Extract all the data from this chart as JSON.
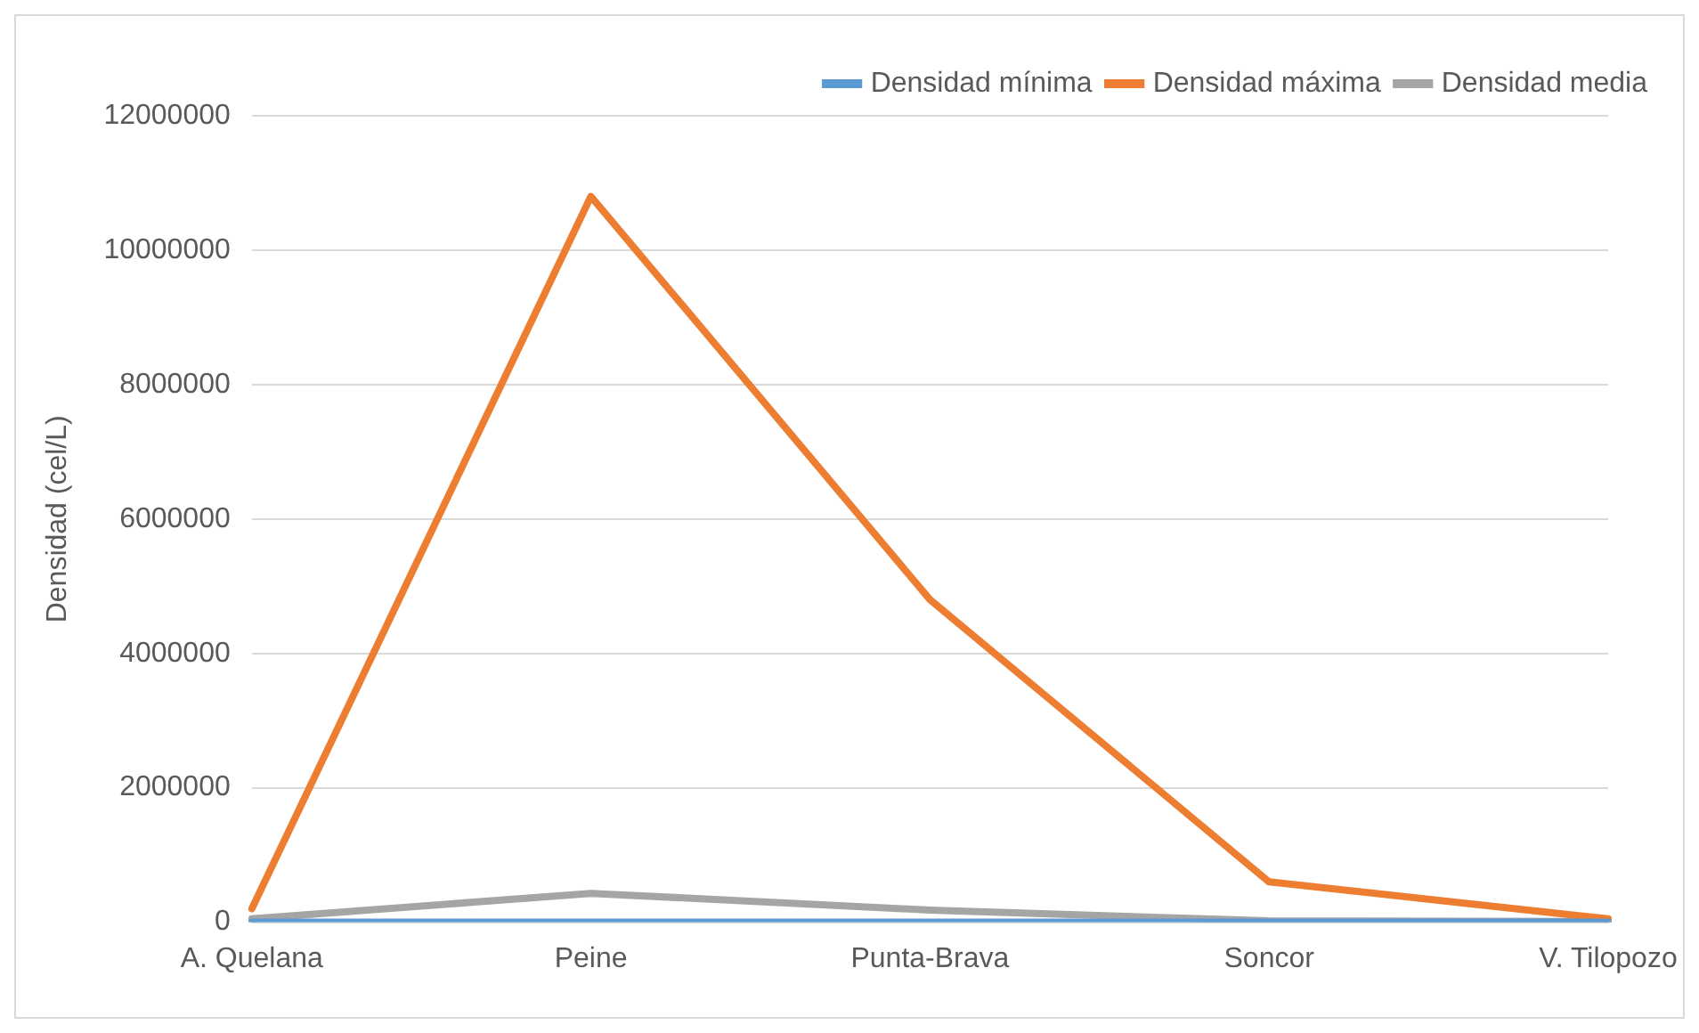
{
  "chart_data": {
    "type": "line",
    "ylabel": "Densidad (cel/L)",
    "categories": [
      "A. Quelana",
      "Peine",
      "Punta-Brava",
      "Soncor",
      "V. Tilopozo"
    ],
    "series": [
      {
        "name": "Densidad mínima",
        "color": "#5b9bd5",
        "values": [
          0,
          0,
          0,
          0,
          0
        ]
      },
      {
        "name": "Densidad máxima",
        "color": "#ed7d31",
        "values": [
          200000,
          10800000,
          4800000,
          600000,
          50000
        ]
      },
      {
        "name": "Densidad media",
        "color": "#a5a5a5",
        "values": [
          50000,
          430000,
          180000,
          20000,
          10000
        ]
      }
    ],
    "ylim": [
      0,
      12000000
    ],
    "yticks": [
      0,
      2000000,
      4000000,
      6000000,
      8000000,
      10000000,
      12000000
    ],
    "grid": "y",
    "legend": "top",
    "marker": "none",
    "line_style": "solid"
  }
}
